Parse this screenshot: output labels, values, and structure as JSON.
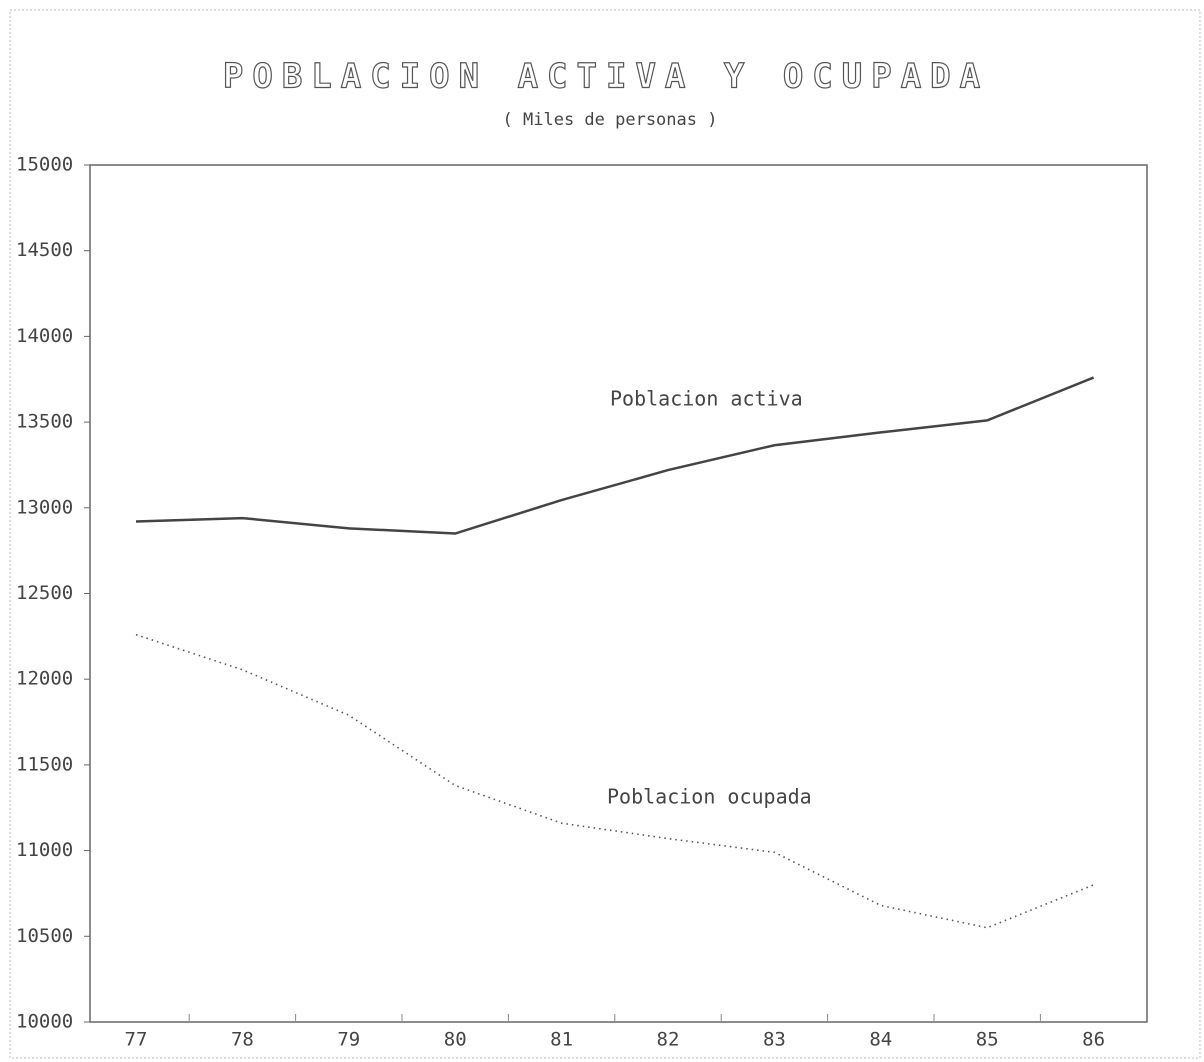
{
  "chart_data": {
    "type": "line",
    "title": "POBLACION ACTIVA Y OCUPADA",
    "subtitle": "( Miles de personas )",
    "categories": [
      "77",
      "78",
      "79",
      "80",
      "81",
      "82",
      "83",
      "84",
      "85",
      "86"
    ],
    "series": [
      {
        "name": "Poblacion activa",
        "color": "#444",
        "line_style": "solid",
        "values": [
          12920,
          12940,
          12880,
          12850,
          13045,
          13220,
          13365,
          13440,
          13510,
          13760
        ]
      },
      {
        "name": "Poblacion ocupada",
        "color": "#555",
        "line_style": "dotted",
        "values": [
          12260,
          12055,
          11790,
          11380,
          11160,
          11070,
          10990,
          10680,
          10550,
          10800
        ]
      }
    ],
    "ylim": [
      10000,
      15000
    ],
    "yticks": [
      10000,
      10500,
      11000,
      11500,
      12000,
      12500,
      13000,
      13500,
      14000,
      14500,
      15000
    ],
    "grid": false
  }
}
